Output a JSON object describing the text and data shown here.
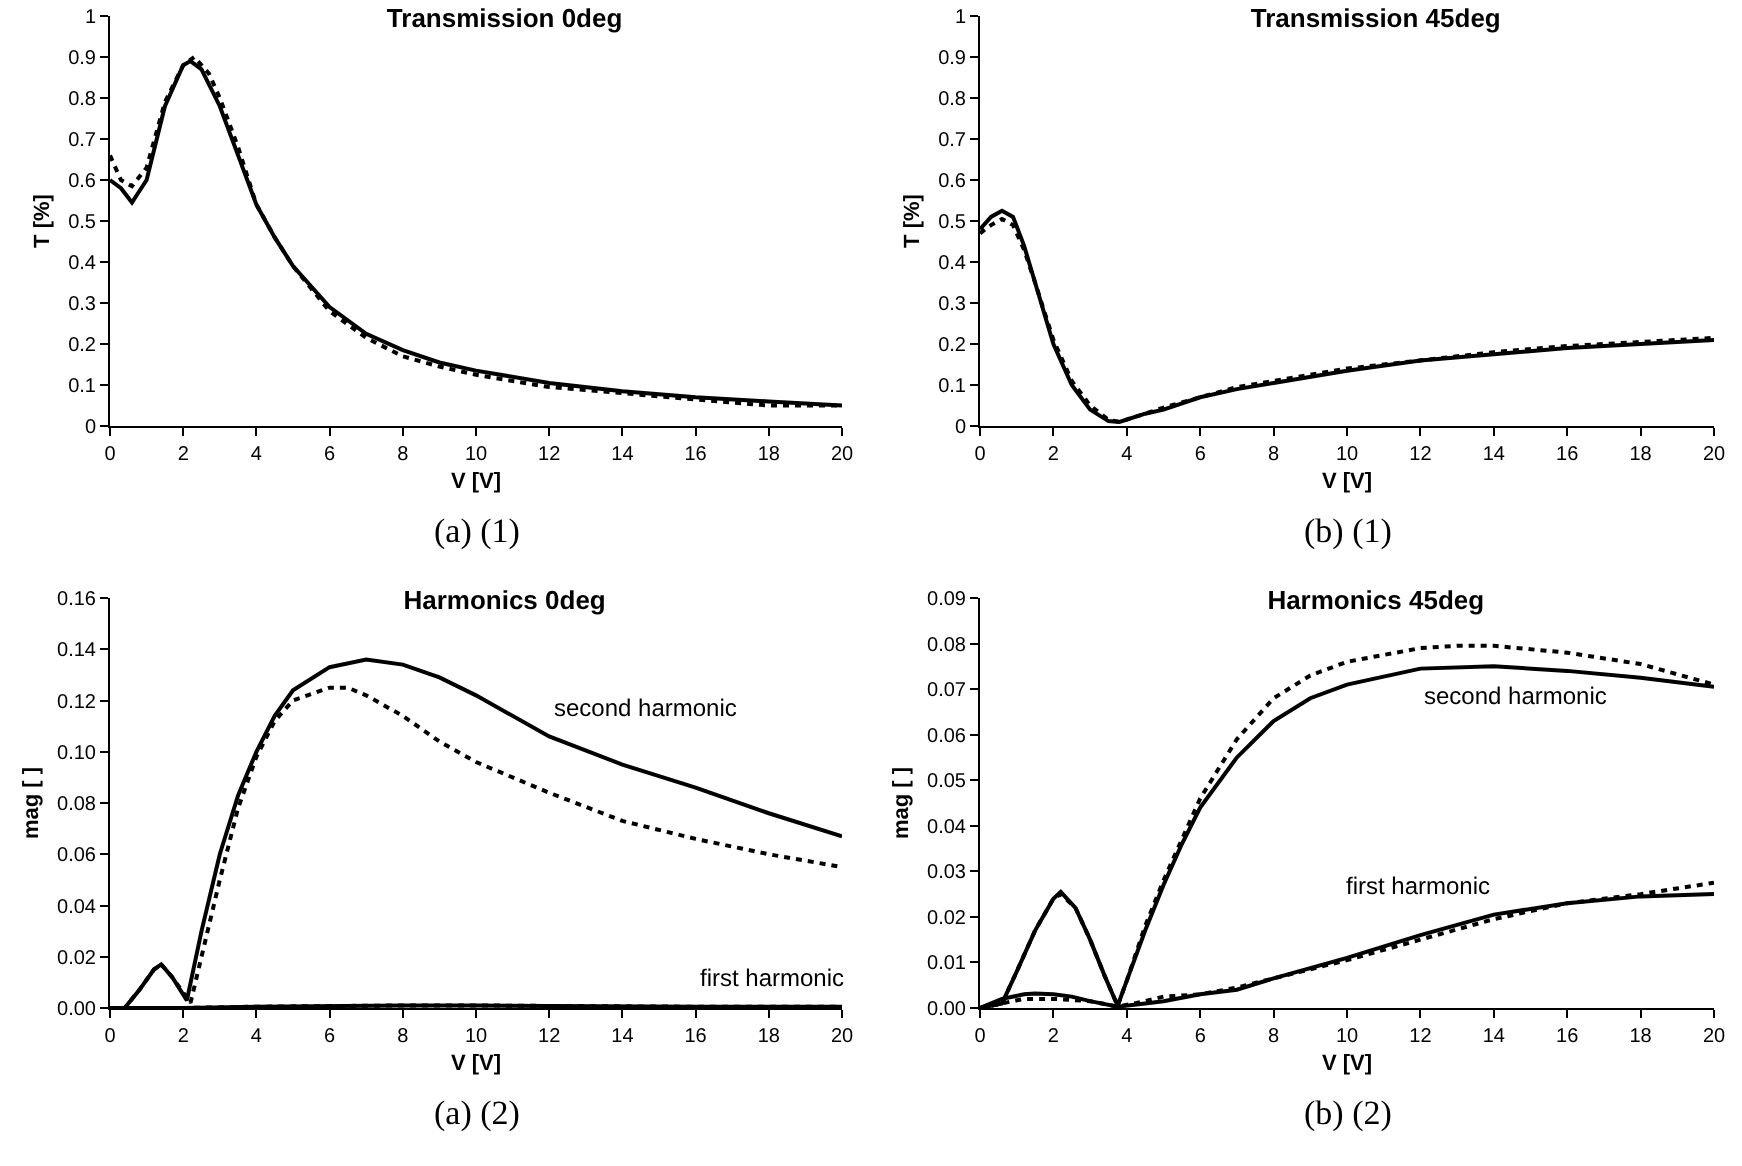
{
  "chart_data": [
    {
      "type": "line",
      "title": "Transmission 0deg",
      "xlabel": "V [V]",
      "ylabel": "T [%]",
      "xlim": [
        0,
        20
      ],
      "xticks": [
        0,
        2,
        4,
        6,
        8,
        10,
        12,
        14,
        16,
        18,
        20
      ],
      "ylim": [
        0,
        1
      ],
      "yticks": [
        0,
        0.1,
        0.2,
        0.3,
        0.4,
        0.5,
        0.6,
        0.7,
        0.8,
        0.9,
        1
      ],
      "grid": false,
      "legend": false,
      "annotations": [
        "(a) (1)"
      ],
      "series": [
        {
          "color": "#000000",
          "line_style": "solid",
          "x": [
            0,
            0.3,
            0.6,
            1,
            1.5,
            2,
            2.2,
            2.5,
            3,
            3.5,
            4,
            4.5,
            5,
            6,
            7,
            8,
            9,
            10,
            12,
            14,
            16,
            18,
            20
          ],
          "values": [
            0.6,
            0.58,
            0.545,
            0.6,
            0.78,
            0.88,
            0.89,
            0.87,
            0.78,
            0.66,
            0.54,
            0.46,
            0.39,
            0.29,
            0.225,
            0.185,
            0.155,
            0.135,
            0.105,
            0.085,
            0.07,
            0.06,
            0.05
          ]
        },
        {
          "color": "#000000",
          "line_style": "dotted",
          "x": [
            0,
            0.3,
            0.6,
            1,
            1.5,
            2,
            2.3,
            2.7,
            3,
            3.5,
            4,
            4.5,
            5,
            6,
            7,
            8,
            9,
            10,
            12,
            14,
            16,
            18,
            20
          ],
          "values": [
            0.66,
            0.6,
            0.585,
            0.63,
            0.79,
            0.88,
            0.9,
            0.86,
            0.8,
            0.68,
            0.54,
            0.46,
            0.39,
            0.28,
            0.215,
            0.17,
            0.145,
            0.125,
            0.095,
            0.08,
            0.065,
            0.05,
            0.05
          ]
        }
      ]
    },
    {
      "type": "line",
      "title": "Transmission 45deg",
      "xlabel": "V [V]",
      "ylabel": "T [%]",
      "xlim": [
        0,
        20
      ],
      "xticks": [
        0,
        2,
        4,
        6,
        8,
        10,
        12,
        14,
        16,
        18,
        20
      ],
      "ylim": [
        0,
        1
      ],
      "yticks": [
        0,
        0.1,
        0.2,
        0.3,
        0.4,
        0.5,
        0.6,
        0.7,
        0.8,
        0.9,
        1
      ],
      "grid": false,
      "legend": false,
      "annotations": [
        "(b) (1)"
      ],
      "series": [
        {
          "color": "#000000",
          "line_style": "solid",
          "x": [
            0,
            0.3,
            0.6,
            0.9,
            1.2,
            1.5,
            2,
            2.5,
            3,
            3.5,
            3.8,
            4.5,
            5,
            6,
            7,
            8,
            10,
            12,
            14,
            16,
            18,
            20
          ],
          "values": [
            0.48,
            0.51,
            0.525,
            0.51,
            0.44,
            0.35,
            0.2,
            0.1,
            0.04,
            0.012,
            0.01,
            0.03,
            0.04,
            0.07,
            0.09,
            0.105,
            0.135,
            0.16,
            0.175,
            0.19,
            0.2,
            0.21
          ]
        },
        {
          "color": "#000000",
          "line_style": "dotted",
          "x": [
            0,
            0.3,
            0.6,
            0.9,
            1.2,
            1.5,
            2,
            2.5,
            3,
            3.5,
            3.8,
            4.5,
            5,
            6,
            7,
            8,
            10,
            12,
            14,
            16,
            18,
            20
          ],
          "values": [
            0.47,
            0.49,
            0.505,
            0.49,
            0.43,
            0.35,
            0.21,
            0.11,
            0.05,
            0.015,
            0.01,
            0.03,
            0.045,
            0.07,
            0.095,
            0.11,
            0.14,
            0.16,
            0.18,
            0.195,
            0.205,
            0.215
          ]
        }
      ]
    },
    {
      "type": "line",
      "title": "Harmonics 0deg",
      "xlabel": "V [V]",
      "ylabel": "mag [ ]",
      "xlim": [
        0,
        20
      ],
      "xticks": [
        0,
        2,
        4,
        6,
        8,
        10,
        12,
        14,
        16,
        18,
        20
      ],
      "ylim": [
        0,
        0.16
      ],
      "yticks": [
        {
          "value": 0,
          "label": "0.00"
        },
        {
          "value": 0.02,
          "label": "0.02"
        },
        {
          "value": 0.04,
          "label": "0.04"
        },
        {
          "value": 0.06,
          "label": "0.06"
        },
        {
          "value": 0.08,
          "label": "0.08"
        },
        {
          "value": 0.1,
          "label": "0.10"
        },
        {
          "value": 0.12,
          "label": "0.12"
        },
        {
          "value": 0.14,
          "label": "0.14"
        },
        {
          "value": 0.16,
          "label": "0.16"
        }
      ],
      "grid": false,
      "legend": false,
      "annotations": [
        "(a) (2)"
      ],
      "series": [
        {
          "name": "second harmonic",
          "color": "#000000",
          "line_style": "solid",
          "x": [
            0,
            0.4,
            0.8,
            1.2,
            1.4,
            1.7,
            2.1,
            2.5,
            3,
            3.5,
            4,
            4.5,
            5,
            6,
            7,
            8,
            9,
            10,
            12,
            14,
            16,
            18,
            20
          ],
          "values": [
            0,
            0,
            0.007,
            0.015,
            0.017,
            0.012,
            0.003,
            0.03,
            0.06,
            0.083,
            0.1,
            0.114,
            0.124,
            0.133,
            0.136,
            0.134,
            0.129,
            0.122,
            0.106,
            0.095,
            0.086,
            0.076,
            0.067
          ]
        },
        {
          "color": "#000000",
          "line_style": "dotted",
          "x": [
            0,
            0.4,
            0.8,
            1.2,
            1.4,
            1.7,
            2.2,
            2.5,
            3,
            3.5,
            4,
            4.5,
            5,
            6,
            6.5,
            7,
            8,
            9,
            10,
            12,
            14,
            16,
            18,
            20
          ],
          "values": [
            0,
            0,
            0.007,
            0.015,
            0.017,
            0.012,
            0.002,
            0.02,
            0.05,
            0.078,
            0.098,
            0.112,
            0.12,
            0.125,
            0.125,
            0.122,
            0.114,
            0.104,
            0.096,
            0.084,
            0.073,
            0.066,
            0.06,
            0.055
          ]
        },
        {
          "name": "first harmonic",
          "color": "#000000",
          "line_style": "solid",
          "x": [
            0,
            2,
            4,
            8,
            10,
            12,
            16,
            20
          ],
          "values": [
            0,
            0,
            0.0005,
            0.001,
            0.001,
            0.0008,
            0.0005,
            0.0005
          ]
        },
        {
          "color": "#000000",
          "line_style": "dotted",
          "x": [
            0,
            2,
            4,
            8,
            10,
            12,
            16,
            20
          ],
          "values": [
            0,
            0,
            0.0005,
            0.001,
            0.001,
            0.0008,
            0.0005,
            0.0005
          ]
        }
      ]
    },
    {
      "type": "line",
      "title": "Harmonics 45deg",
      "xlabel": "V [V]",
      "ylabel": "mag [ ]",
      "xlim": [
        0,
        20
      ],
      "xticks": [
        0,
        2,
        4,
        6,
        8,
        10,
        12,
        14,
        16,
        18,
        20
      ],
      "ylim": [
        0,
        0.09
      ],
      "yticks": [
        {
          "value": 0,
          "label": "0.00"
        },
        {
          "value": 0.01,
          "label": "0.01"
        },
        {
          "value": 0.02,
          "label": "0.02"
        },
        {
          "value": 0.03,
          "label": "0.03"
        },
        {
          "value": 0.04,
          "label": "0.04"
        },
        {
          "value": 0.05,
          "label": "0.05"
        },
        {
          "value": 0.06,
          "label": "0.06"
        },
        {
          "value": 0.07,
          "label": "0.07"
        },
        {
          "value": 0.08,
          "label": "0.08"
        },
        {
          "value": 0.09,
          "label": "0.09"
        }
      ],
      "grid": false,
      "legend": false,
      "annotations": [
        "(b) (2)"
      ],
      "series": [
        {
          "name": "second harmonic",
          "color": "#000000",
          "line_style": "solid",
          "x": [
            0,
            0.6,
            1,
            1.5,
            2,
            2.2,
            2.6,
            3,
            3.4,
            3.75,
            4,
            4.5,
            5,
            5.5,
            6,
            7,
            8,
            9,
            10,
            12,
            14,
            16,
            18,
            20
          ],
          "values": [
            0,
            0.001,
            0.008,
            0.017,
            0.024,
            0.0255,
            0.022,
            0.015,
            0.007,
            0.0005,
            0.006,
            0.017,
            0.027,
            0.036,
            0.044,
            0.055,
            0.063,
            0.068,
            0.071,
            0.0745,
            0.075,
            0.074,
            0.0725,
            0.0705
          ]
        },
        {
          "color": "#000000",
          "line_style": "dotted",
          "x": [
            0,
            0.6,
            1,
            1.5,
            2,
            2.2,
            2.6,
            3,
            3.4,
            3.75,
            4,
            4.5,
            5,
            5.5,
            6,
            7,
            8,
            9,
            10,
            12,
            13,
            14,
            16,
            18,
            20
          ],
          "values": [
            0,
            0.001,
            0.008,
            0.017,
            0.024,
            0.025,
            0.022,
            0.015,
            0.007,
            0.0005,
            0.006,
            0.018,
            0.028,
            0.037,
            0.046,
            0.059,
            0.068,
            0.073,
            0.076,
            0.079,
            0.0795,
            0.0795,
            0.078,
            0.0755,
            0.071
          ]
        },
        {
          "name": "first harmonic",
          "color": "#000000",
          "line_style": "solid",
          "x": [
            0,
            0.6,
            1.2,
            1.5,
            2,
            2.5,
            3,
            3.75,
            4.5,
            5,
            6,
            7,
            8,
            10,
            12,
            14,
            16,
            18,
            20
          ],
          "values": [
            0,
            0.002,
            0.003,
            0.0032,
            0.003,
            0.0025,
            0.0015,
            0.0003,
            0.001,
            0.0015,
            0.003,
            0.004,
            0.0065,
            0.011,
            0.016,
            0.0205,
            0.023,
            0.0245,
            0.025
          ]
        },
        {
          "color": "#000000",
          "line_style": "dotted",
          "x": [
            0,
            0.6,
            1.2,
            2,
            3,
            3.75,
            4.5,
            5,
            6,
            7,
            8,
            10,
            12,
            14,
            16,
            18,
            20
          ],
          "values": [
            0,
            0.001,
            0.002,
            0.002,
            0.0015,
            0.0003,
            0.0015,
            0.0025,
            0.003,
            0.0045,
            0.0065,
            0.0105,
            0.015,
            0.0195,
            0.023,
            0.025,
            0.0275
          ]
        }
      ]
    }
  ]
}
